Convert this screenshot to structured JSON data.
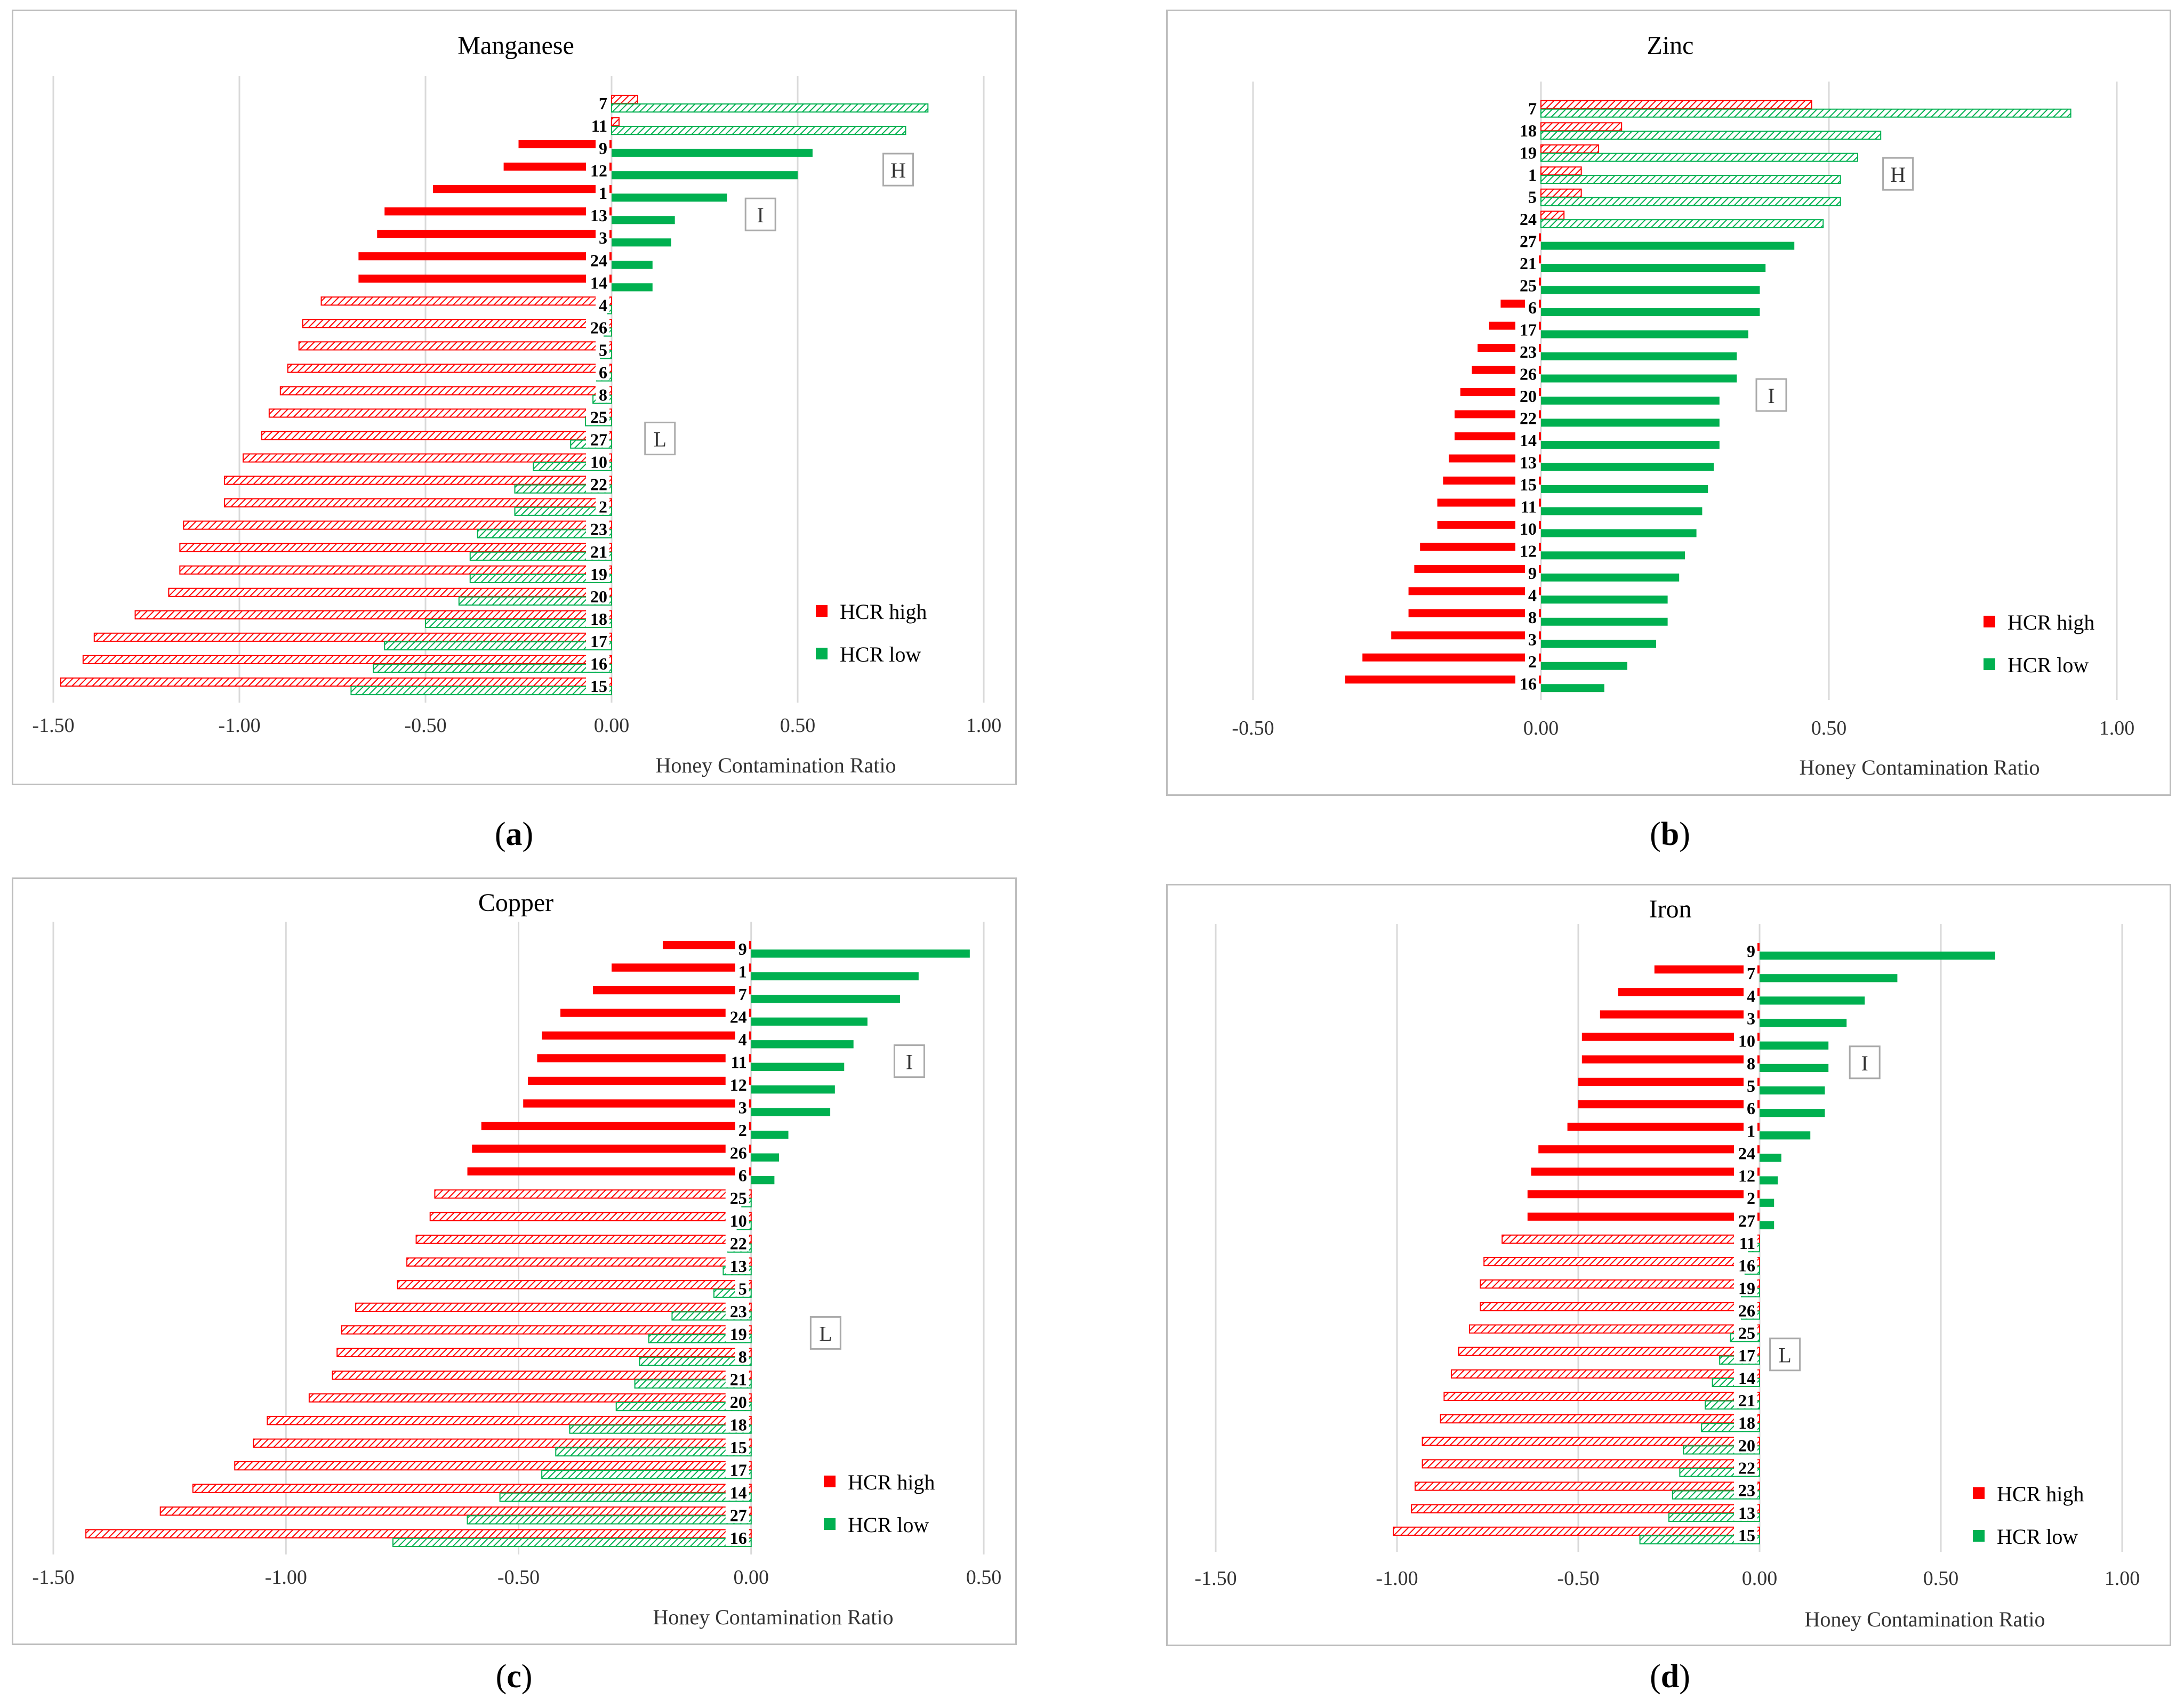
{
  "legend": {
    "high_label": "HCR high",
    "low_label": "HCR low"
  },
  "colors": {
    "high": "#ff0000",
    "low": "#00b050",
    "grid": "#d9d9d9",
    "hatch_high": "#ff0000",
    "hatch_low": "#00b050"
  },
  "chart_data": [
    {
      "id": "a",
      "caption": "a",
      "type": "bar",
      "orientation": "horizontal",
      "title": "Manganese",
      "xlabel": "Honey Contamination Ratio",
      "xlim": [
        -1.5,
        1.0
      ],
      "xticks": [
        "-1.50",
        "-1.00",
        "-0.50",
        "0.00",
        "0.50",
        "1.00"
      ],
      "categories": [
        "7",
        "11",
        "9",
        "12",
        "1",
        "13",
        "3",
        "24",
        "14",
        "4",
        "26",
        "5",
        "6",
        "8",
        "25",
        "27",
        "10",
        "22",
        "2",
        "23",
        "21",
        "19",
        "20",
        "18",
        "17",
        "16",
        "15"
      ],
      "series": [
        {
          "name": "HCR high",
          "values": [
            0.07,
            0.02,
            -0.25,
            -0.29,
            -0.48,
            -0.61,
            -0.63,
            -0.68,
            -0.68,
            -0.78,
            -0.83,
            -0.84,
            -0.87,
            -0.89,
            -0.92,
            -0.94,
            -0.99,
            -1.04,
            -1.04,
            -1.15,
            -1.16,
            -1.16,
            -1.19,
            -1.28,
            -1.39,
            -1.42,
            -1.48
          ]
        },
        {
          "name": "HCR low",
          "values": [
            0.85,
            0.79,
            0.54,
            0.5,
            0.31,
            0.17,
            0.16,
            0.11,
            0.11,
            -0.01,
            -0.02,
            -0.03,
            -0.04,
            -0.05,
            -0.07,
            -0.11,
            -0.21,
            -0.26,
            -0.26,
            -0.36,
            -0.38,
            -0.38,
            -0.41,
            -0.5,
            -0.61,
            -0.64,
            -0.7
          ]
        }
      ],
      "hatched_rows": [
        0,
        1,
        9,
        10,
        11,
        12,
        13,
        14,
        15,
        16,
        17,
        18,
        19,
        20,
        21,
        22,
        23,
        24,
        25,
        26
      ],
      "zones": [
        {
          "label": "H",
          "x": 0.77,
          "row": 3
        },
        {
          "label": "I",
          "x": 0.4,
          "row": 5
        },
        {
          "label": "L",
          "x": 0.13,
          "row": 15
        }
      ]
    },
    {
      "id": "b",
      "caption": "b",
      "type": "bar",
      "orientation": "horizontal",
      "title": "Zinc",
      "xlabel": "Honey Contamination Ratio",
      "xlim": [
        -0.5,
        1.0
      ],
      "xticks": [
        "-0.50",
        "0.00",
        "0.50",
        "1.00"
      ],
      "categories": [
        "7",
        "18",
        "19",
        "1",
        "5",
        "24",
        "27",
        "21",
        "25",
        "6",
        "17",
        "23",
        "26",
        "20",
        "22",
        "14",
        "13",
        "15",
        "11",
        "10",
        "12",
        "9",
        "4",
        "8",
        "3",
        "2",
        "16"
      ],
      "series": [
        {
          "name": "HCR high",
          "values": [
            0.47,
            0.14,
            0.1,
            0.07,
            0.07,
            0.04,
            -0.01,
            -0.03,
            -0.03,
            -0.07,
            -0.09,
            -0.11,
            -0.12,
            -0.14,
            -0.15,
            -0.15,
            -0.16,
            -0.17,
            -0.18,
            -0.18,
            -0.21,
            -0.22,
            -0.23,
            -0.23,
            -0.26,
            -0.31,
            -0.34
          ]
        },
        {
          "name": "HCR low",
          "values": [
            0.92,
            0.59,
            0.55,
            0.52,
            0.52,
            0.49,
            0.44,
            0.39,
            0.38,
            0.38,
            0.36,
            0.34,
            0.34,
            0.31,
            0.31,
            0.31,
            0.3,
            0.29,
            0.28,
            0.27,
            0.25,
            0.24,
            0.22,
            0.22,
            0.2,
            0.15,
            0.11
          ]
        }
      ],
      "hatched_rows": [
        0,
        1,
        2,
        3,
        4,
        5
      ],
      "zones": [
        {
          "label": "H",
          "x": 0.62,
          "row": 3
        },
        {
          "label": "I",
          "x": 0.4,
          "row": 13
        }
      ]
    },
    {
      "id": "c",
      "caption": "c",
      "type": "bar",
      "orientation": "horizontal",
      "title": "Copper",
      "xlabel": "Honey Contamination Ratio",
      "xlim": [
        -1.5,
        0.5
      ],
      "xticks": [
        "-1.50",
        "-1.00",
        "-0.50",
        "0.00",
        "0.50"
      ],
      "categories": [
        "9",
        "1",
        "7",
        "24",
        "4",
        "11",
        "12",
        "3",
        "2",
        "26",
        "6",
        "25",
        "10",
        "22",
        "13",
        "5",
        "23",
        "19",
        "8",
        "21",
        "20",
        "18",
        "15",
        "17",
        "14",
        "27",
        "16"
      ],
      "series": [
        {
          "name": "HCR high",
          "values": [
            -0.19,
            -0.3,
            -0.34,
            -0.41,
            -0.45,
            -0.46,
            -0.48,
            -0.49,
            -0.58,
            -0.6,
            -0.61,
            -0.68,
            -0.69,
            -0.72,
            -0.74,
            -0.76,
            -0.85,
            -0.88,
            -0.89,
            -0.9,
            -0.95,
            -1.04,
            -1.07,
            -1.11,
            -1.2,
            -1.27,
            -1.43
          ]
        },
        {
          "name": "HCR low",
          "values": [
            0.47,
            0.36,
            0.32,
            0.25,
            0.22,
            0.2,
            0.18,
            0.17,
            0.08,
            0.06,
            0.05,
            -0.02,
            -0.03,
            -0.05,
            -0.06,
            -0.08,
            -0.17,
            -0.22,
            -0.24,
            -0.25,
            -0.29,
            -0.39,
            -0.42,
            -0.45,
            -0.54,
            -0.61,
            -0.77
          ]
        }
      ],
      "hatched_rows": [
        11,
        12,
        13,
        14,
        15,
        16,
        17,
        18,
        19,
        20,
        21,
        22,
        23,
        24,
        25,
        26
      ],
      "zones": [
        {
          "label": "I",
          "x": 0.34,
          "row": 5
        },
        {
          "label": "L",
          "x": 0.16,
          "row": 17
        }
      ]
    },
    {
      "id": "d",
      "caption": "d",
      "type": "bar",
      "orientation": "horizontal",
      "title": "Iron",
      "xlabel": "Honey Contamination Ratio",
      "xlim": [
        -1.5,
        1.0
      ],
      "xticks": [
        "-1.50",
        "-1.00",
        "-0.50",
        "0.00",
        "0.50",
        "1.00"
      ],
      "categories": [
        "9",
        "7",
        "4",
        "3",
        "10",
        "8",
        "5",
        "6",
        "1",
        "24",
        "12",
        "2",
        "27",
        "11",
        "16",
        "19",
        "26",
        "25",
        "17",
        "14",
        "21",
        "18",
        "20",
        "22",
        "23",
        "13",
        "15"
      ],
      "series": [
        {
          "name": "HCR high",
          "values": [
            -0.03,
            -0.29,
            -0.39,
            -0.44,
            -0.49,
            -0.49,
            -0.5,
            -0.5,
            -0.53,
            -0.61,
            -0.63,
            -0.64,
            -0.64,
            -0.71,
            -0.76,
            -0.77,
            -0.77,
            -0.8,
            -0.83,
            -0.85,
            -0.87,
            -0.88,
            -0.93,
            -0.93,
            -0.95,
            -0.96,
            -1.01
          ]
        },
        {
          "name": "HCR low",
          "values": [
            0.65,
            0.38,
            0.29,
            0.24,
            0.19,
            0.19,
            0.18,
            0.18,
            0.14,
            0.06,
            0.05,
            0.04,
            0.04,
            -0.03,
            -0.04,
            -0.05,
            -0.05,
            -0.08,
            -0.11,
            -0.13,
            -0.15,
            -0.16,
            -0.21,
            -0.22,
            -0.24,
            -0.25,
            -0.33
          ]
        }
      ],
      "hatched_rows": [
        13,
        14,
        15,
        16,
        17,
        18,
        19,
        20,
        21,
        22,
        23,
        24,
        25,
        26
      ],
      "zones": [
        {
          "label": "I",
          "x": 0.29,
          "row": 5
        },
        {
          "label": "L",
          "x": 0.07,
          "row": 18
        }
      ]
    }
  ]
}
